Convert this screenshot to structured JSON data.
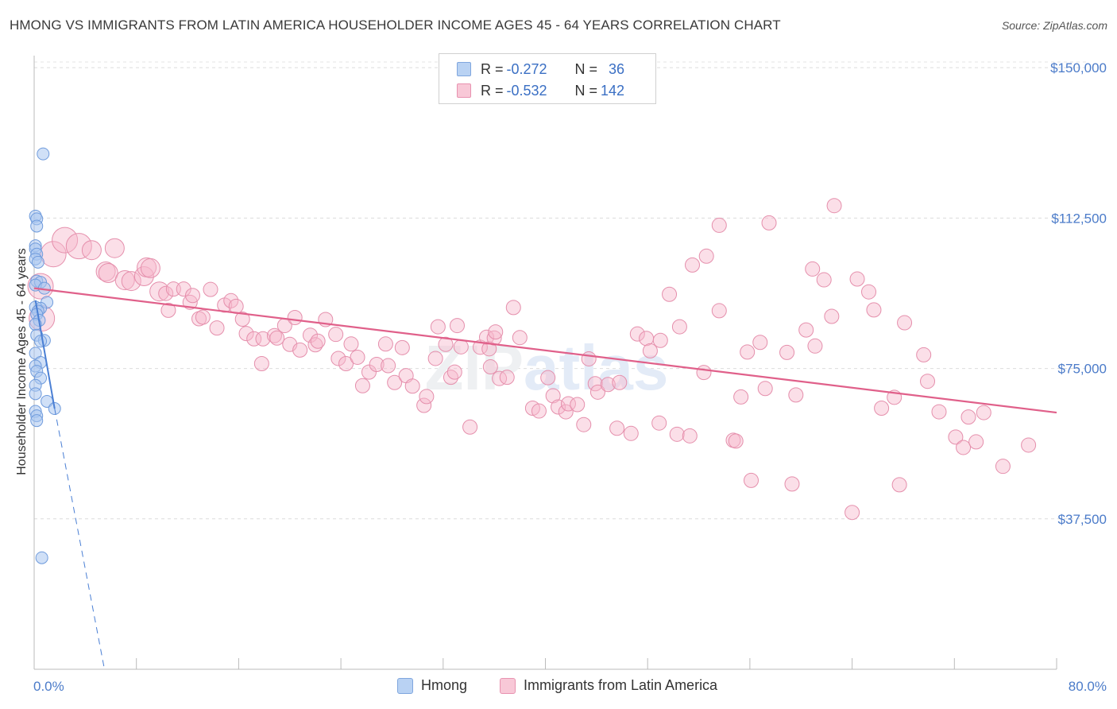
{
  "title": "HMONG VS IMMIGRANTS FROM LATIN AMERICA HOUSEHOLDER INCOME AGES 45 - 64 YEARS CORRELATION CHART",
  "source": "Source: ZipAtlas.com",
  "watermark": "ZIPatlas",
  "colors": {
    "blue": "#4a7fd4",
    "pink": "#e0608a",
    "blue_fill": "#a9c7f0",
    "pink_fill": "#f6bfd0",
    "tick": "#4b7bc9"
  },
  "legend": {
    "rows": [
      {
        "r_label": "R = ",
        "r_value": "-0.272",
        "n_label": "N = ",
        "n_value": "36"
      },
      {
        "r_label": "R = ",
        "r_value": "-0.532",
        "n_label": "N = ",
        "n_value": "142"
      }
    ]
  },
  "bottom_legend": [
    "Hmong",
    "Immigrants from Latin America"
  ],
  "chart_data": {
    "type": "scatter",
    "xlabel": "",
    "ylabel": "Householder Income Ages 45 - 64 years",
    "xlim": [
      0,
      80
    ],
    "ylim": [
      0,
      153000
    ],
    "x_tick_labels": [
      "0.0%",
      "80.0%"
    ],
    "y_ticks": [
      37500,
      75000,
      112500,
      150000
    ],
    "y_tick_labels": [
      "$37,500",
      "$75,000",
      "$112,500",
      "$150,000"
    ],
    "grid": true,
    "series": [
      {
        "name": "Hmong",
        "color": "#4a7fd4",
        "trend": {
          "x0": 0.1,
          "y0": 92000,
          "x1": 1.6,
          "y1": 65000,
          "dash_x1": 5.5,
          "dash_y1": 0
        },
        "points": [
          [
            0.7,
            128500
          ],
          [
            0.1,
            113000
          ],
          [
            0.2,
            112300
          ],
          [
            0.2,
            110500
          ],
          [
            0.1,
            105600
          ],
          [
            0.1,
            104800
          ],
          [
            0.2,
            103500
          ],
          [
            0.1,
            102300
          ],
          [
            0.3,
            101500
          ],
          [
            0.2,
            96800
          ],
          [
            0.5,
            96500
          ],
          [
            0.1,
            95800
          ],
          [
            0.8,
            95000
          ],
          [
            1.0,
            91500
          ],
          [
            0.1,
            90300
          ],
          [
            0.5,
            90000
          ],
          [
            0.3,
            89300
          ],
          [
            0.2,
            88500
          ],
          [
            0.4,
            87000
          ],
          [
            0.1,
            86000
          ],
          [
            0.2,
            83300
          ],
          [
            0.8,
            82000
          ],
          [
            0.5,
            81800
          ],
          [
            0.1,
            78800
          ],
          [
            0.5,
            76500
          ],
          [
            0.1,
            75600
          ],
          [
            0.2,
            74300
          ],
          [
            0.5,
            72600
          ],
          [
            0.1,
            70800
          ],
          [
            0.1,
            68700
          ],
          [
            1.0,
            66800
          ],
          [
            1.6,
            65000
          ],
          [
            0.1,
            64300
          ],
          [
            0.2,
            63200
          ],
          [
            0.2,
            62000
          ],
          [
            0.6,
            27800
          ]
        ]
      },
      {
        "name": "Immigrants from Latin America",
        "color": "#e0608a",
        "trend": {
          "x0": 0,
          "y0": 95000,
          "x1": 80,
          "y1": 64000
        },
        "points": [
          [
            0.5,
            95500
          ],
          [
            0.6,
            87500
          ],
          [
            1.5,
            103500
          ],
          [
            2.4,
            107000
          ],
          [
            3.5,
            105500
          ],
          [
            4.5,
            104500
          ],
          [
            6.3,
            105000
          ],
          [
            5.6,
            99200
          ],
          [
            5.8,
            98800
          ],
          [
            7.1,
            97000
          ],
          [
            7.6,
            96800
          ],
          [
            8.6,
            98000
          ],
          [
            8.8,
            100200
          ],
          [
            9.1,
            100000
          ],
          [
            9.8,
            94200
          ],
          [
            10.3,
            93700
          ],
          [
            10.5,
            89500
          ],
          [
            10.9,
            94800
          ],
          [
            11.7,
            94800
          ],
          [
            12.2,
            91500
          ],
          [
            12.4,
            93200
          ],
          [
            12.9,
            87400
          ],
          [
            13.2,
            87800
          ],
          [
            13.8,
            94700
          ],
          [
            14.3,
            85100
          ],
          [
            14.9,
            90800
          ],
          [
            15.4,
            91900
          ],
          [
            15.8,
            90500
          ],
          [
            16.3,
            87300
          ],
          [
            16.6,
            83700
          ],
          [
            17.2,
            82400
          ],
          [
            17.8,
            76200
          ],
          [
            17.9,
            82400
          ],
          [
            18.8,
            83200
          ],
          [
            19.0,
            82600
          ],
          [
            19.6,
            85700
          ],
          [
            20.0,
            81000
          ],
          [
            20.4,
            87700
          ],
          [
            20.8,
            79600
          ],
          [
            21.6,
            83300
          ],
          [
            22.0,
            80900
          ],
          [
            22.2,
            81800
          ],
          [
            22.8,
            87200
          ],
          [
            23.6,
            83500
          ],
          [
            23.8,
            77500
          ],
          [
            24.4,
            76200
          ],
          [
            24.8,
            81100
          ],
          [
            25.3,
            77800
          ],
          [
            25.7,
            70700
          ],
          [
            26.2,
            74100
          ],
          [
            26.8,
            76000
          ],
          [
            27.5,
            81100
          ],
          [
            27.7,
            75700
          ],
          [
            28.2,
            71500
          ],
          [
            28.8,
            80200
          ],
          [
            29.1,
            73200
          ],
          [
            29.6,
            70600
          ],
          [
            30.5,
            65800
          ],
          [
            30.7,
            68000
          ],
          [
            31.4,
            77500
          ],
          [
            31.6,
            85400
          ],
          [
            32.2,
            81000
          ],
          [
            32.6,
            72800
          ],
          [
            32.9,
            74100
          ],
          [
            33.1,
            85700
          ],
          [
            33.4,
            80400
          ],
          [
            34.1,
            60400
          ],
          [
            34.9,
            80300
          ],
          [
            35.4,
            82800
          ],
          [
            35.6,
            79900
          ],
          [
            35.7,
            75400
          ],
          [
            36.0,
            82600
          ],
          [
            36.1,
            84100
          ],
          [
            36.4,
            72500
          ],
          [
            37.0,
            72800
          ],
          [
            37.5,
            90200
          ],
          [
            38.0,
            82700
          ],
          [
            39.0,
            65100
          ],
          [
            39.5,
            64400
          ],
          [
            40.2,
            72700
          ],
          [
            40.6,
            68200
          ],
          [
            41.0,
            65400
          ],
          [
            41.6,
            64200
          ],
          [
            41.8,
            66200
          ],
          [
            42.5,
            66000
          ],
          [
            43.0,
            61000
          ],
          [
            43.4,
            77400
          ],
          [
            43.9,
            71200
          ],
          [
            44.1,
            69100
          ],
          [
            44.9,
            71000
          ],
          [
            45.6,
            60100
          ],
          [
            45.8,
            71500
          ],
          [
            46.7,
            58800
          ],
          [
            47.2,
            83600
          ],
          [
            47.9,
            82500
          ],
          [
            48.2,
            79400
          ],
          [
            48.9,
            61400
          ],
          [
            49.0,
            82000
          ],
          [
            49.7,
            93500
          ],
          [
            50.3,
            58600
          ],
          [
            50.5,
            85400
          ],
          [
            51.3,
            58200
          ],
          [
            51.5,
            100800
          ],
          [
            52.4,
            74000
          ],
          [
            52.6,
            103000
          ],
          [
            53.6,
            89400
          ],
          [
            53.6,
            110700
          ],
          [
            54.7,
            57100
          ],
          [
            54.9,
            56900
          ],
          [
            55.3,
            67900
          ],
          [
            55.8,
            79100
          ],
          [
            56.1,
            47100
          ],
          [
            56.8,
            81500
          ],
          [
            57.2,
            70000
          ],
          [
            57.5,
            111300
          ],
          [
            58.9,
            79000
          ],
          [
            59.3,
            46200
          ],
          [
            59.6,
            68400
          ],
          [
            60.4,
            84600
          ],
          [
            60.9,
            99800
          ],
          [
            61.1,
            80600
          ],
          [
            61.8,
            97100
          ],
          [
            62.4,
            88000
          ],
          [
            62.6,
            115600
          ],
          [
            64.0,
            39100
          ],
          [
            64.4,
            97300
          ],
          [
            65.3,
            94100
          ],
          [
            65.7,
            89600
          ],
          [
            66.3,
            65100
          ],
          [
            67.3,
            67800
          ],
          [
            67.7,
            46000
          ],
          [
            68.1,
            86400
          ],
          [
            69.6,
            78400
          ],
          [
            69.9,
            71800
          ],
          [
            70.8,
            64200
          ],
          [
            72.1,
            57900
          ],
          [
            72.7,
            55300
          ],
          [
            73.1,
            62900
          ],
          [
            73.7,
            56700
          ],
          [
            74.3,
            64000
          ],
          [
            75.8,
            50600
          ],
          [
            77.8,
            55900
          ]
        ]
      }
    ]
  }
}
